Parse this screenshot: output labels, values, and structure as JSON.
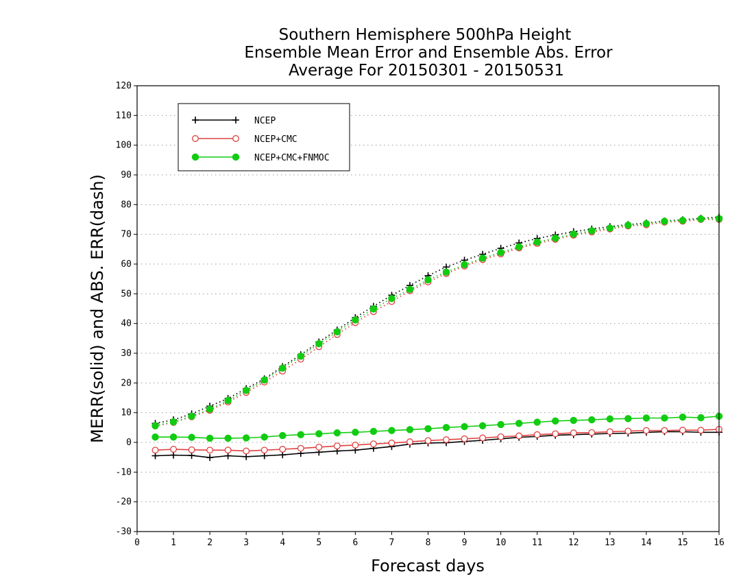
{
  "chart_data": {
    "type": "line",
    "title_lines": [
      "Southern Hemisphere 500hPa Height",
      "Ensemble Mean Error and Ensemble Abs. Error",
      "Average For 20150301 - 20150531"
    ],
    "xlabel": "Forecast days",
    "ylabel": "MERR(solid) and ABS. ERR(dash)",
    "xlim": [
      0,
      16
    ],
    "ylim": [
      -30,
      120
    ],
    "xticks": [
      0,
      1,
      2,
      3,
      4,
      5,
      6,
      7,
      8,
      9,
      10,
      11,
      12,
      13,
      14,
      15,
      16
    ],
    "yticks": [
      -30,
      -20,
      -10,
      0,
      10,
      20,
      30,
      40,
      50,
      60,
      70,
      80,
      90,
      100,
      110,
      120
    ],
    "y_gridlines": true,
    "legend_position": "top-left",
    "x": [
      0.5,
      1,
      1.5,
      2,
      2.5,
      3,
      3.5,
      4,
      4.5,
      5,
      5.5,
      6,
      6.5,
      7,
      7.5,
      8,
      8.5,
      9,
      9.5,
      10,
      10.5,
      11,
      11.5,
      12,
      12.5,
      13,
      13.5,
      14,
      14.5,
      15,
      15.5,
      16
    ],
    "series": [
      {
        "name": "NCEP",
        "color": "#000000",
        "marker": "plus",
        "mean_error": [
          -4.5,
          -4.3,
          -4.4,
          -5.1,
          -4.5,
          -4.8,
          -4.5,
          -4.2,
          -3.7,
          -3.3,
          -2.9,
          -2.6,
          -2.0,
          -1.4,
          -0.6,
          -0.2,
          -0.1,
          0.3,
          0.7,
          1.2,
          1.7,
          2.0,
          2.4,
          2.6,
          2.8,
          3.0,
          3.1,
          3.4,
          3.6,
          3.6,
          3.4,
          3.4
        ],
        "abs_error": [
          6.4,
          7.6,
          9.6,
          12.2,
          14.8,
          18.1,
          21.4,
          25.5,
          29.5,
          33.8,
          37.8,
          42.0,
          45.8,
          49.5,
          52.8,
          56.1,
          59.0,
          61.3,
          63.3,
          65.3,
          67.1,
          68.6,
          69.8,
          70.9,
          71.8,
          72.6,
          73.3,
          73.8,
          74.5,
          74.9,
          75.4,
          75.8
        ]
      },
      {
        "name": "NCEP+CMC",
        "color": "#e04040",
        "marker": "open-circle",
        "mean_error": [
          -2.6,
          -2.3,
          -2.5,
          -2.6,
          -2.6,
          -2.9,
          -2.6,
          -2.3,
          -2.0,
          -1.6,
          -1.2,
          -0.9,
          -0.5,
          -0.2,
          0.2,
          0.6,
          0.9,
          1.2,
          1.5,
          1.9,
          2.2,
          2.6,
          2.9,
          3.2,
          3.3,
          3.6,
          3.8,
          4.0,
          4.0,
          4.1,
          4.1,
          4.4
        ],
        "abs_error": [
          5.5,
          6.7,
          8.6,
          10.8,
          13.6,
          16.8,
          20.3,
          24.0,
          28.0,
          32.2,
          36.3,
          40.3,
          44.0,
          47.4,
          51.0,
          54.0,
          56.8,
          59.3,
          61.5,
          63.4,
          65.4,
          66.9,
          68.3,
          69.7,
          70.8,
          71.8,
          72.8,
          73.2,
          74.1,
          74.4,
          75.0,
          75.0
        ]
      },
      {
        "name": "NCEP+CMC+FNMOC",
        "color": "#11cc11",
        "marker": "filled-circle",
        "mean_error": [
          1.8,
          1.8,
          1.7,
          1.4,
          1.4,
          1.5,
          1.8,
          2.3,
          2.6,
          2.9,
          3.2,
          3.4,
          3.7,
          4.0,
          4.3,
          4.6,
          5.0,
          5.3,
          5.6,
          6.0,
          6.4,
          6.8,
          7.2,
          7.4,
          7.6,
          7.9,
          8.0,
          8.2,
          8.2,
          8.5,
          8.3,
          8.8
        ],
        "abs_error": [
          5.6,
          6.9,
          8.8,
          11.2,
          14.1,
          17.5,
          21.0,
          25.0,
          29.0,
          33.2,
          37.2,
          41.2,
          44.9,
          48.4,
          51.5,
          54.7,
          57.3,
          59.8,
          62.0,
          63.9,
          65.8,
          67.4,
          68.7,
          70.1,
          71.2,
          72.1,
          73.1,
          73.6,
          74.4,
          74.7,
          75.2,
          75.3
        ]
      }
    ]
  }
}
